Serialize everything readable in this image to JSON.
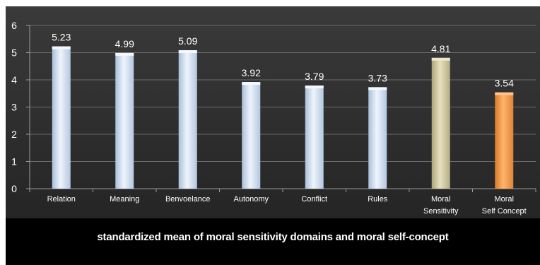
{
  "chart_data": {
    "type": "bar",
    "categories": [
      "Relation",
      "Meaning",
      "Benvoelance",
      "Autonomy",
      "Conflict",
      "Rules",
      "Moral Sensitivity",
      "Moral Self Concept"
    ],
    "values": [
      5.23,
      4.99,
      5.09,
      3.92,
      3.79,
      3.73,
      4.81,
      3.54
    ],
    "value_labels": [
      "5.23",
      "4.99",
      "5.09",
      "3.92",
      "3.79",
      "3.73",
      "4.81",
      "3.54"
    ],
    "bar_colors": [
      "#cddcf0",
      "#cddcf0",
      "#cddcf0",
      "#cddcf0",
      "#cddcf0",
      "#cddcf0",
      "#cfc9a2",
      "#f59a45"
    ],
    "ylim": [
      0,
      6
    ],
    "yticks": [
      "0",
      "1",
      "2",
      "3",
      "4",
      "5",
      "6"
    ],
    "title": "",
    "xlabel": "standardized mean of moral sensitivity domains and moral self-concept",
    "ylabel": "",
    "grid": true,
    "legend": "none"
  }
}
